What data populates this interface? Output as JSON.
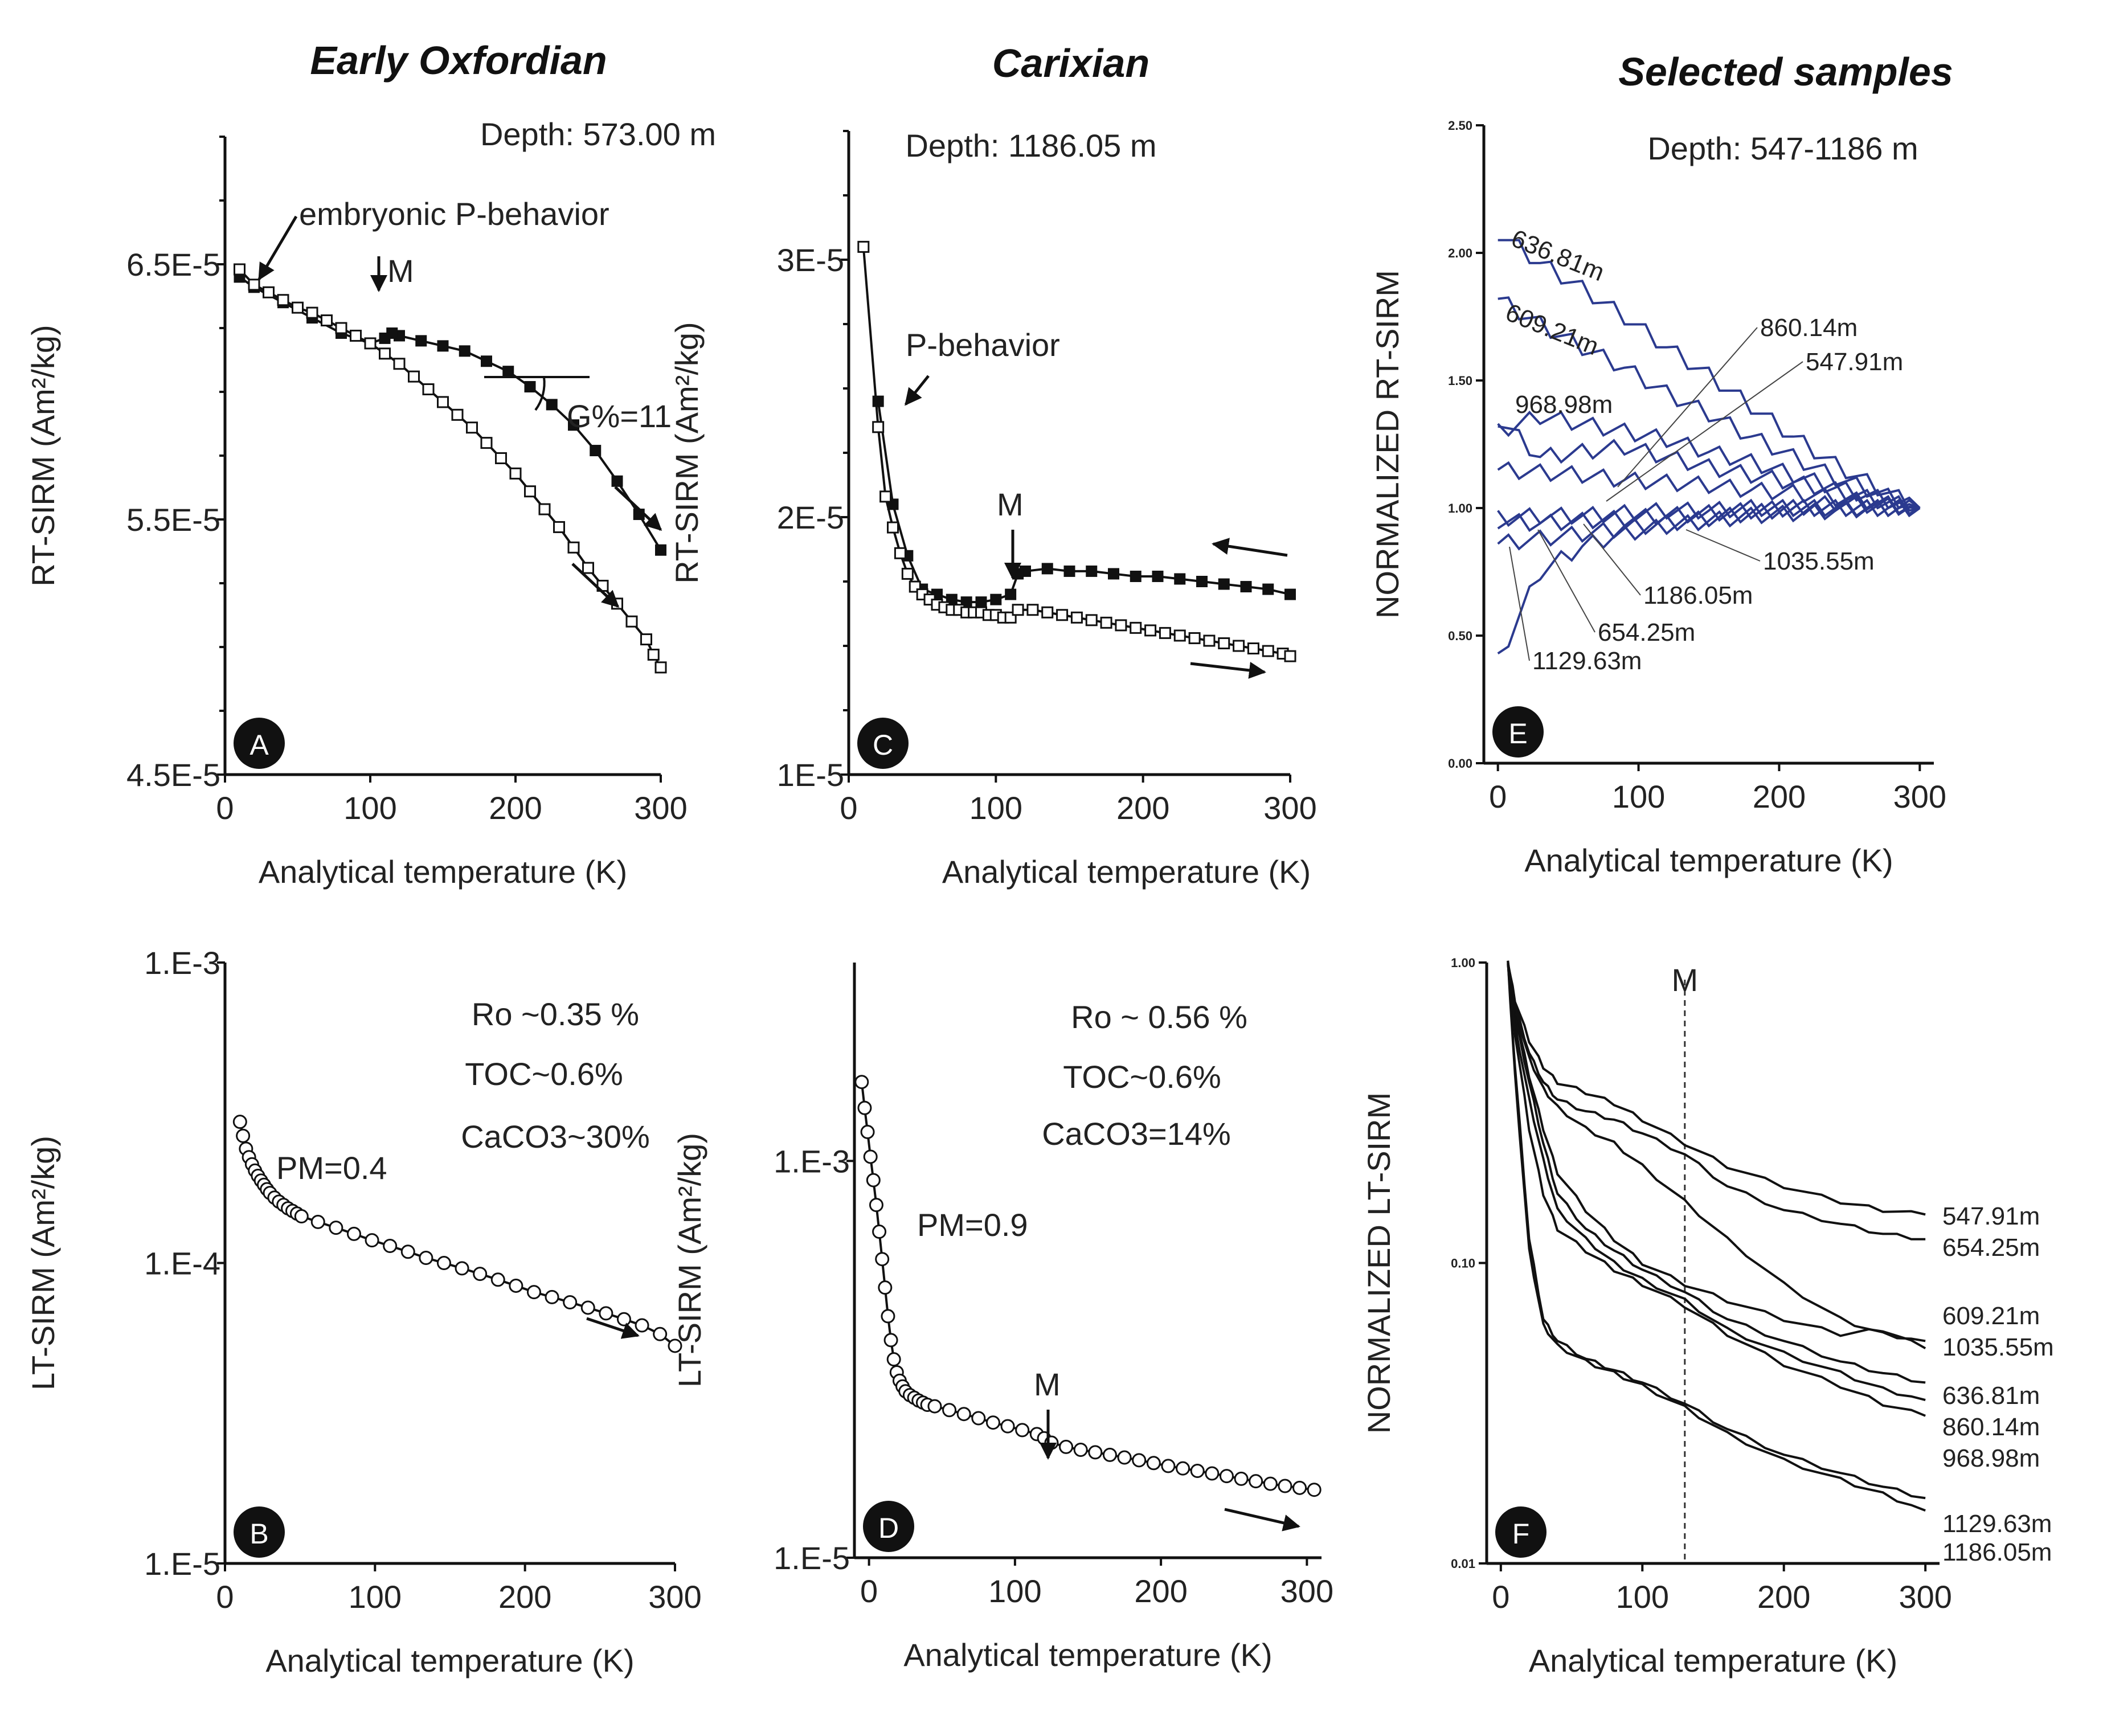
{
  "columns": [
    "Early Oxfordian",
    "Carixian",
    "Selected samples"
  ],
  "chart_data": [
    {
      "id": "A",
      "type": "scatter",
      "panel_letter": "A",
      "depth_label": "Depth: 573.00 m",
      "xlabel": "Analytical temperature (K)",
      "ylabel": "RT-SIRM (Am²/kg)",
      "xlim": [
        0,
        300
      ],
      "ylim": [
        4.5e-05,
        7e-05
      ],
      "xticks": [
        0,
        100,
        200,
        300
      ],
      "yticks": [
        {
          "value": 6.5e-05,
          "label": "6.5E-5"
        },
        {
          "value": 5.5e-05,
          "label": "5.5E-5"
        },
        {
          "value": 4.5e-05,
          "label": "4.5E-5"
        }
      ],
      "series": [
        {
          "name": "cooling",
          "marker": "filled-square",
          "x": [
            300,
            285,
            270,
            255,
            240,
            225,
            210,
            195,
            180,
            165,
            150,
            135,
            120,
            115,
            110,
            100,
            80,
            60,
            40,
            20,
            10
          ],
          "y": [
            5.38e-05,
            5.52e-05,
            5.65e-05,
            5.77e-05,
            5.87e-05,
            5.95e-05,
            6.02e-05,
            6.08e-05,
            6.12e-05,
            6.16e-05,
            6.18e-05,
            6.2e-05,
            6.22e-05,
            6.23e-05,
            6.21e-05,
            6.19e-05,
            6.23e-05,
            6.29e-05,
            6.35e-05,
            6.41e-05,
            6.45e-05
          ]
        },
        {
          "name": "warming",
          "marker": "open-square",
          "x": [
            10,
            20,
            30,
            40,
            50,
            60,
            70,
            80,
            90,
            100,
            110,
            120,
            130,
            140,
            150,
            160,
            170,
            180,
            190,
            200,
            210,
            220,
            230,
            240,
            250,
            260,
            270,
            280,
            290,
            295,
            300
          ],
          "y": [
            6.48e-05,
            6.42e-05,
            6.39e-05,
            6.36e-05,
            6.33e-05,
            6.31e-05,
            6.28e-05,
            6.25e-05,
            6.22e-05,
            6.19e-05,
            6.15e-05,
            6.11e-05,
            6.06e-05,
            6.01e-05,
            5.96e-05,
            5.91e-05,
            5.86e-05,
            5.8e-05,
            5.74e-05,
            5.68e-05,
            5.61e-05,
            5.54e-05,
            5.47e-05,
            5.39e-05,
            5.31e-05,
            5.24e-05,
            5.17e-05,
            5.1e-05,
            5.03e-05,
            4.97e-05,
            4.92e-05
          ]
        }
      ],
      "annotations": [
        "embryonic P-behavior",
        "M",
        "G%=11"
      ]
    },
    {
      "id": "B",
      "type": "scatter",
      "scale": "log",
      "panel_letter": "B",
      "xlabel": "Analytical temperature (K)",
      "ylabel": "LT-SIRM (Am²/kg)",
      "xlim": [
        0,
        300
      ],
      "ylim": [
        1e-05,
        0.001
      ],
      "xticks": [
        0,
        100,
        200,
        300
      ],
      "yticks": [
        {
          "value": 0.001,
          "label": "1.E-3"
        },
        {
          "value": 0.0001,
          "label": "1.E-4"
        },
        {
          "value": 1e-05,
          "label": "1.E-5"
        }
      ],
      "series": [
        {
          "name": "warming",
          "marker": "open-circle",
          "x": [
            10,
            12,
            14,
            16,
            18,
            20,
            22,
            24,
            26,
            28,
            30,
            33,
            36,
            39,
            42,
            45,
            48,
            51,
            62,
            74,
            86,
            98,
            110,
            122,
            134,
            146,
            158,
            170,
            182,
            194,
            206,
            218,
            230,
            242,
            254,
            266,
            278,
            290,
            300
          ],
          "y": [
            0.000295,
            0.000265,
            0.00024,
            0.000225,
            0.000213,
            0.000203,
            0.000195,
            0.000188,
            0.000182,
            0.000176,
            0.000171,
            0.000165,
            0.00016,
            0.000156,
            0.000152,
            0.000149,
            0.000146,
            0.000143,
            0.000137,
            0.000131,
            0.000125,
            0.000119,
            0.000114,
            0.000109,
            0.000104,
            0.0001,
            9.6e-05,
            9.2e-05,
            8.8e-05,
            8.4e-05,
            8e-05,
            7.7e-05,
            7.4e-05,
            7.1e-05,
            6.8e-05,
            6.5e-05,
            6.2e-05,
            5.8e-05,
            5.3e-05
          ]
        }
      ],
      "annotations": [
        "PM=0.4",
        "Ro ~0.35 %",
        "TOC~0.6%",
        "CaCO3~30%"
      ]
    },
    {
      "id": "C",
      "type": "scatter",
      "panel_letter": "C",
      "depth_label": "Depth: 1186.05 m",
      "xlabel": "Analytical temperature (K)",
      "ylabel": "RT-SIRM (Am²/kg)",
      "xlim": [
        0,
        300
      ],
      "ylim": [
        1e-05,
        3.5e-05
      ],
      "xticks": [
        0,
        100,
        200,
        300
      ],
      "yticks": [
        {
          "value": 3e-05,
          "label": "3E-5"
        },
        {
          "value": 2e-05,
          "label": "2E-5"
        },
        {
          "value": 1e-05,
          "label": "1E-5"
        }
      ],
      "series": [
        {
          "name": "cooling",
          "marker": "filled-square",
          "x": [
            300,
            285,
            270,
            255,
            240,
            225,
            210,
            195,
            180,
            165,
            150,
            135,
            120,
            115,
            110,
            100,
            90,
            80,
            70,
            60,
            50,
            40,
            30,
            20
          ],
          "y": [
            1.7e-05,
            1.72e-05,
            1.73e-05,
            1.74e-05,
            1.75e-05,
            1.76e-05,
            1.77e-05,
            1.77e-05,
            1.78e-05,
            1.79e-05,
            1.79e-05,
            1.8e-05,
            1.79e-05,
            1.78e-05,
            1.7e-05,
            1.68e-05,
            1.67e-05,
            1.67e-05,
            1.68e-05,
            1.7e-05,
            1.72e-05,
            1.85e-05,
            2.05e-05,
            2.45e-05
          ]
        },
        {
          "name": "warming",
          "marker": "open-square",
          "x": [
            10,
            20,
            25,
            30,
            35,
            40,
            45,
            50,
            55,
            60,
            65,
            70,
            75,
            80,
            85,
            90,
            95,
            100,
            105,
            110,
            115,
            125,
            135,
            145,
            155,
            165,
            175,
            185,
            195,
            205,
            215,
            225,
            235,
            245,
            255,
            265,
            275,
            285,
            295,
            300
          ],
          "y": [
            3.05e-05,
            2.35e-05,
            2.08e-05,
            1.96e-05,
            1.86e-05,
            1.78e-05,
            1.73e-05,
            1.7e-05,
            1.68e-05,
            1.66e-05,
            1.65e-05,
            1.64e-05,
            1.64e-05,
            1.63e-05,
            1.63e-05,
            1.63e-05,
            1.62e-05,
            1.62e-05,
            1.61e-05,
            1.61e-05,
            1.64e-05,
            1.64e-05,
            1.63e-05,
            1.62e-05,
            1.61e-05,
            1.6e-05,
            1.59e-05,
            1.58e-05,
            1.57e-05,
            1.56e-05,
            1.55e-05,
            1.54e-05,
            1.53e-05,
            1.52e-05,
            1.51e-05,
            1.5e-05,
            1.49e-05,
            1.48e-05,
            1.47e-05,
            1.46e-05
          ]
        }
      ],
      "annotations": [
        "P-behavior",
        "M"
      ]
    },
    {
      "id": "D",
      "type": "scatter",
      "scale": "log",
      "panel_letter": "D",
      "xlabel": "Analytical temperature (K)",
      "ylabel": "LT-SIRM (Am²/kg)",
      "xlim": [
        -10,
        310
      ],
      "ylim": [
        1e-05,
        0.01
      ],
      "xticks": [
        0,
        100,
        200,
        300
      ],
      "yticks": [
        {
          "value": 0.001,
          "label": "1.E-3"
        },
        {
          "value": 1e-05,
          "label": "1.E-5"
        }
      ],
      "series": [
        {
          "name": "warming",
          "marker": "open-circle",
          "x": [
            -5,
            -3,
            -1,
            1,
            3,
            5,
            7,
            9,
            11,
            13,
            15,
            17,
            19,
            21,
            23,
            25,
            28,
            31,
            34,
            37,
            40,
            45,
            55,
            65,
            75,
            85,
            95,
            105,
            115,
            120,
            125,
            135,
            145,
            155,
            165,
            175,
            185,
            195,
            205,
            215,
            225,
            235,
            245,
            255,
            265,
            275,
            285,
            295,
            305
          ],
          "y": [
            0.0025,
            0.00185,
            0.0014,
            0.00105,
            0.0008,
            0.0006,
            0.00044,
            0.00032,
            0.00023,
            0.000165,
            0.000125,
            0.0001,
            8.6e-05,
            7.8e-05,
            7.3e-05,
            6.9e-05,
            6.6e-05,
            6.4e-05,
            6.2e-05,
            6.05e-05,
            5.9e-05,
            5.8e-05,
            5.55e-05,
            5.3e-05,
            5.05e-05,
            4.8e-05,
            4.6e-05,
            4.4e-05,
            4.2e-05,
            4e-05,
            3.8e-05,
            3.62e-05,
            3.5e-05,
            3.4e-05,
            3.3e-05,
            3.2e-05,
            3.1e-05,
            3e-05,
            2.9e-05,
            2.82e-05,
            2.74e-05,
            2.66e-05,
            2.58e-05,
            2.5e-05,
            2.43e-05,
            2.36e-05,
            2.3e-05,
            2.25e-05,
            2.2e-05
          ]
        }
      ],
      "annotations": [
        "PM=0.9",
        "M",
        "Ro ~ 0.56 %",
        "TOC~0.6%",
        "CaCO3=14%"
      ]
    },
    {
      "id": "E",
      "type": "line",
      "panel_letter": "E",
      "depth_label": "Depth: 547-1186 m",
      "xlabel": "Analytical temperature (K)",
      "ylabel": "NORMALIZED RT-SIRM",
      "xlim": [
        -10,
        310
      ],
      "ylim": [
        0,
        2.5
      ],
      "xticks": [
        0,
        100,
        200,
        300
      ],
      "yticks": [
        {
          "value": 2.5,
          "label": "2.50"
        },
        {
          "value": 2.0,
          "label": "2.00"
        },
        {
          "value": 1.5,
          "label": "1.50"
        },
        {
          "value": 1.0,
          "label": "1.00"
        },
        {
          "value": 0.5,
          "label": "0.50"
        },
        {
          "value": 0.0,
          "label": "0.00"
        }
      ],
      "x": [
        0,
        30,
        60,
        90,
        120,
        150,
        180,
        210,
        240,
        270,
        300
      ],
      "series": [
        {
          "name": "636.81m",
          "values": [
            2.08,
            1.96,
            1.86,
            1.75,
            1.63,
            1.52,
            1.4,
            1.28,
            1.17,
            1.08,
            1.0
          ]
        },
        {
          "name": "609.21m",
          "values": [
            1.82,
            1.72,
            1.63,
            1.55,
            1.45,
            1.37,
            1.28,
            1.2,
            1.12,
            1.06,
            1.0
          ]
        },
        {
          "name": "968.98m",
          "values": [
            1.3,
            1.36,
            1.33,
            1.3,
            1.27,
            1.22,
            1.18,
            1.13,
            1.08,
            1.04,
            1.0
          ]
        },
        {
          "name": "860.14m",
          "values": [
            1.35,
            1.2,
            1.22,
            1.24,
            1.2,
            1.16,
            1.13,
            1.1,
            1.07,
            1.03,
            1.0
          ]
        },
        {
          "name": "547.91m",
          "values": [
            1.15,
            1.14,
            1.13,
            1.11,
            1.1,
            1.09,
            1.07,
            1.06,
            1.04,
            1.02,
            1.0
          ]
        },
        {
          "name": "1035.55m",
          "values": [
            0.96,
            0.97,
            0.97,
            0.98,
            0.99,
            0.99,
            1.0,
            1.0,
            1.0,
            1.0,
            1.0
          ]
        },
        {
          "name": "1186.05m",
          "values": [
            0.95,
            0.94,
            0.95,
            0.96,
            0.97,
            0.98,
            0.99,
            1.0,
            1.0,
            1.0,
            1.0
          ]
        },
        {
          "name": "654.25m",
          "values": [
            0.86,
            0.88,
            0.9,
            0.92,
            0.94,
            0.96,
            0.98,
            1.0,
            1.02,
            1.01,
            1.0
          ]
        },
        {
          "name": "1129.63m",
          "values": [
            0.4,
            0.75,
            0.85,
            0.9,
            0.93,
            0.95,
            0.97,
            0.98,
            0.99,
            1.0,
            1.0
          ]
        }
      ]
    },
    {
      "id": "F",
      "type": "line",
      "scale": "log",
      "panel_letter": "F",
      "xlabel": "Analytical temperature (K)",
      "ylabel": "NORMALIZED LT-SIRM",
      "xlim": [
        -10,
        310
      ],
      "ylim": [
        0.01,
        1.0
      ],
      "xticks": [
        0,
        100,
        200,
        300
      ],
      "yticks": [
        {
          "value": 1.0,
          "label": "1.00"
        },
        {
          "value": 0.1,
          "label": "0.10"
        },
        {
          "value": 0.01,
          "label": "0.01"
        }
      ],
      "m_line_x": 130,
      "m_label": "M",
      "x": [
        5,
        10,
        20,
        30,
        40,
        60,
        80,
        100,
        130,
        160,
        200,
        240,
        270,
        300
      ],
      "series": [
        {
          "name": "547.91m",
          "values": [
            1.0,
            0.75,
            0.55,
            0.45,
            0.4,
            0.37,
            0.34,
            0.3,
            0.25,
            0.21,
            0.18,
            0.16,
            0.15,
            0.145
          ]
        },
        {
          "name": "654.25m",
          "values": [
            1.0,
            0.72,
            0.5,
            0.4,
            0.35,
            0.32,
            0.3,
            0.27,
            0.23,
            0.18,
            0.15,
            0.135,
            0.125,
            0.12
          ]
        },
        {
          "name": "609.21m",
          "values": [
            1.0,
            0.7,
            0.48,
            0.38,
            0.33,
            0.28,
            0.25,
            0.21,
            0.16,
            0.12,
            0.085,
            0.065,
            0.058,
            0.055
          ]
        },
        {
          "name": "1035.55m",
          "values": [
            1.0,
            0.68,
            0.42,
            0.28,
            0.2,
            0.15,
            0.12,
            0.1,
            0.085,
            0.075,
            0.065,
            0.058,
            0.06,
            0.052
          ]
        },
        {
          "name": "636.81m",
          "values": [
            1.0,
            0.66,
            0.4,
            0.25,
            0.17,
            0.13,
            0.11,
            0.095,
            0.08,
            0.065,
            0.055,
            0.047,
            0.043,
            0.04
          ]
        },
        {
          "name": "860.14m",
          "values": [
            1.0,
            0.62,
            0.35,
            0.22,
            0.15,
            0.12,
            0.1,
            0.088,
            0.075,
            0.06,
            0.05,
            0.043,
            0.038,
            0.035
          ]
        },
        {
          "name": "968.98m",
          "values": [
            1.0,
            0.58,
            0.28,
            0.17,
            0.13,
            0.11,
            0.095,
            0.085,
            0.072,
            0.058,
            0.046,
            0.039,
            0.034,
            0.031
          ]
        },
        {
          "name": "1129.63m",
          "values": [
            1.0,
            0.45,
            0.12,
            0.065,
            0.055,
            0.048,
            0.044,
            0.04,
            0.034,
            0.028,
            0.023,
            0.02,
            0.018,
            0.0165
          ]
        },
        {
          "name": "1186.05m",
          "values": [
            1.0,
            0.42,
            0.11,
            0.062,
            0.053,
            0.047,
            0.043,
            0.039,
            0.033,
            0.027,
            0.022,
            0.019,
            0.017,
            0.015
          ]
        }
      ]
    }
  ]
}
